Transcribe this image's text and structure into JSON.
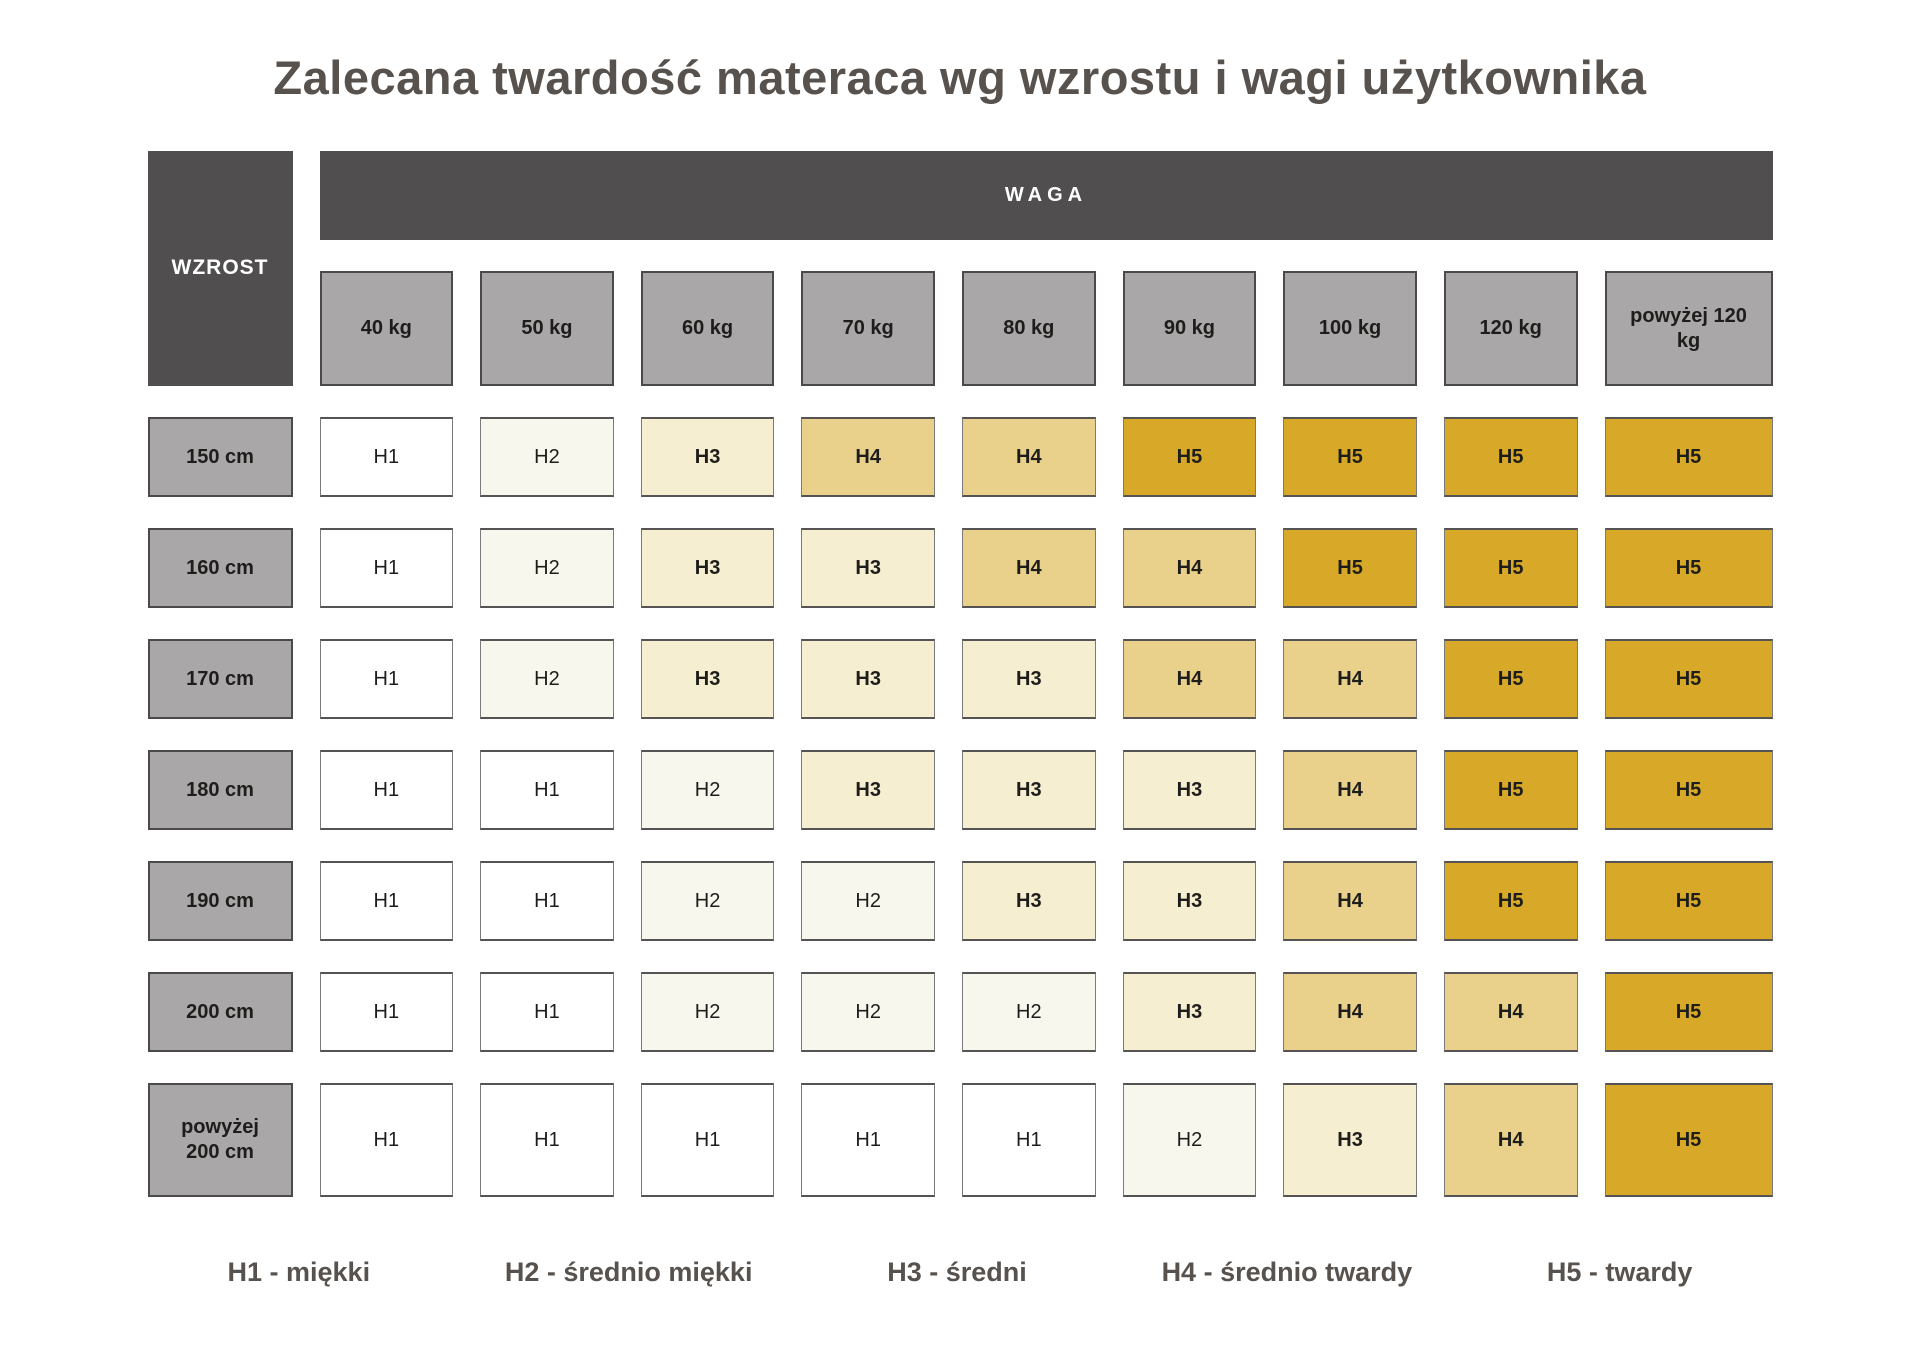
{
  "page": {
    "title": "Zalecana twardość materaca wg wzrostu i wagi użytkownika"
  },
  "table": {
    "corner_label": "WZROST",
    "weight_banner": "WAGA"
  },
  "chart_data": {
    "type": "heatmap",
    "title": "Zalecana twardość materaca wg wzrostu i wagi użytkownika",
    "x_axis_label": "WAGA",
    "y_axis_label": "WZROST",
    "x_categories": [
      "40 kg",
      "50 kg",
      "60 kg",
      "70 kg",
      "80 kg",
      "90 kg",
      "100 kg",
      "120 kg",
      "powyżej 120 kg"
    ],
    "y_categories": [
      "150 cm",
      "160 cm",
      "170 cm",
      "180 cm",
      "190 cm",
      "200 cm",
      "powyżej 200 cm"
    ],
    "values": [
      [
        "H1",
        "H2",
        "H3",
        "H4",
        "H4",
        "H5",
        "H5",
        "H5",
        "H5"
      ],
      [
        "H1",
        "H2",
        "H3",
        "H3",
        "H4",
        "H4",
        "H5",
        "H5",
        "H5"
      ],
      [
        "H1",
        "H2",
        "H3",
        "H3",
        "H3",
        "H4",
        "H4",
        "H5",
        "H5"
      ],
      [
        "H1",
        "H1",
        "H2",
        "H3",
        "H3",
        "H3",
        "H4",
        "H5",
        "H5"
      ],
      [
        "H1",
        "H1",
        "H2",
        "H2",
        "H3",
        "H3",
        "H4",
        "H5",
        "H5"
      ],
      [
        "H1",
        "H1",
        "H2",
        "H2",
        "H2",
        "H3",
        "H4",
        "H4",
        "H5"
      ],
      [
        "H1",
        "H1",
        "H1",
        "H1",
        "H1",
        "H2",
        "H3",
        "H4",
        "H5"
      ]
    ],
    "value_colors": {
      "H1": "#ffffff",
      "H2": "#f8f7ee",
      "H3": "#f6eed0",
      "H4": "#e9d18b",
      "H5": "#d8a828"
    },
    "legend": [
      "H1 - miękki",
      "H2 - średnio miękki",
      "H3 - średni",
      "H4 - średnio twardy",
      "H5 - twardy"
    ],
    "layout": {
      "grid": "off",
      "legend_position": "bottom"
    }
  },
  "colors": {
    "header_dark": "#504e4e",
    "header_gray": "#a9a7a7",
    "title_text": "#57524e",
    "cell_text": "#1d1d1b"
  }
}
